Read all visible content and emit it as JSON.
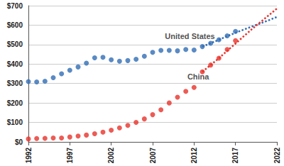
{
  "chart_data": {
    "type": "scatter",
    "x": [
      1992,
      1993,
      1994,
      1995,
      1996,
      1997,
      1998,
      1999,
      2000,
      2001,
      2002,
      2003,
      2004,
      2005,
      2006,
      2007,
      2008,
      2009,
      2010,
      2011,
      2012,
      2013,
      2014,
      2015,
      2016,
      2017
    ],
    "series": [
      {
        "name": "United States",
        "color": "#2f6db5",
        "marker": "circle",
        "values": [
          310,
          308,
          312,
          330,
          350,
          368,
          385,
          405,
          432,
          435,
          422,
          415,
          418,
          425,
          440,
          460,
          470,
          470,
          468,
          475,
          472,
          490,
          507,
          525,
          545,
          568
        ],
        "projection": {
          "line_style": "dotted",
          "x": [
            2013,
            2014,
            2015,
            2016,
            2017,
            2018,
            2019,
            2020,
            2021,
            2022
          ],
          "values": [
            490,
            507,
            525,
            543,
            561,
            577,
            593,
            609,
            625,
            642
          ]
        }
      },
      {
        "name": "China",
        "color": "#e8322b",
        "marker": "circle",
        "values": [
          15,
          17,
          18,
          20,
          20,
          25,
          30,
          35,
          42,
          50,
          60,
          72,
          85,
          100,
          118,
          140,
          165,
          200,
          230,
          260,
          280,
          360,
          395,
          430,
          475,
          520
        ],
        "projection": {
          "line_style": "dotted",
          "x": [
            2013,
            2014,
            2015,
            2016,
            2017,
            2018,
            2019,
            2020,
            2021,
            2022
          ],
          "values": [
            360,
            395,
            430,
            468,
            505,
            543,
            580,
            615,
            650,
            685
          ]
        }
      }
    ],
    "annotations": [
      {
        "text": "United States",
        "x": 2011.5,
        "y": 545
      },
      {
        "text": "China",
        "x": 2012.5,
        "y": 335
      }
    ],
    "xlim": [
      1992,
      2022
    ],
    "xticks": [
      1992,
      1997,
      2002,
      2007,
      2012,
      2017,
      2022
    ],
    "ylim": [
      0,
      700
    ],
    "yticks": [
      {
        "value": 0,
        "label": "$0"
      },
      {
        "value": 100,
        "label": "$100"
      },
      {
        "value": 200,
        "label": "$200"
      },
      {
        "value": 300,
        "label": "$300"
      },
      {
        "value": 400,
        "label": "$400"
      },
      {
        "value": 500,
        "label": "$500"
      },
      {
        "value": 600,
        "label": "$600"
      },
      {
        "value": 700,
        "label": "$700"
      }
    ],
    "grid": true
  }
}
